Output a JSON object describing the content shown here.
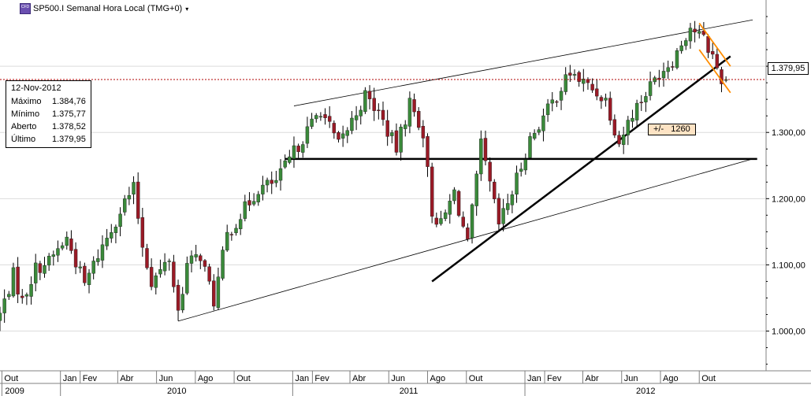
{
  "header": {
    "icon_label": "CFD",
    "title": "SP500.I Semanal Hora Local (TMG+0)",
    "dropdown_glyph": "▾"
  },
  "info_box": {
    "date": "12-Nov-2012",
    "rows": [
      {
        "label": "Máximo",
        "value": "1.384,76"
      },
      {
        "label": "Mínimo",
        "value": "1.375,77"
      },
      {
        "label": "Aberto",
        "value": "1.378,52"
      },
      {
        "label": "Último",
        "value": "1.379,95"
      }
    ]
  },
  "current_price_label": "1.379,95",
  "annotation": "+/-   1260",
  "colors": {
    "bull": "#3a8a3a",
    "bear": "#9a1a26",
    "trend": "#000000",
    "channel": "#ff8c00",
    "price_line": "#b00000",
    "grid": "#dcdcdc"
  },
  "chart_data": {
    "type": "candlestick",
    "symbol": "SP500.I",
    "timeframe": "Semanal",
    "y_ticks": [
      1000,
      1100,
      1200,
      1300,
      1400
    ],
    "y_tick_labels": [
      "1.000,00",
      "1.100,00",
      "1.200,00",
      "1.300,00",
      "1.400,00"
    ],
    "ylim": [
      940,
      1500
    ],
    "x_start": "2009-09-28",
    "x_end": "2013-01-14",
    "month_ticks": [
      {
        "date": "2009-10-01",
        "label": "Out"
      },
      {
        "date": "2010-01-01",
        "label": "Jan"
      },
      {
        "date": "2010-02-01",
        "label": "Fev"
      },
      {
        "date": "2010-04-01",
        "label": "Abr"
      },
      {
        "date": "2010-06-01",
        "label": "Jun"
      },
      {
        "date": "2010-08-01",
        "label": "Ago"
      },
      {
        "date": "2010-10-01",
        "label": "Out"
      },
      {
        "date": "2011-01-01",
        "label": "Jan"
      },
      {
        "date": "2011-02-01",
        "label": "Fev"
      },
      {
        "date": "2011-04-01",
        "label": "Abr"
      },
      {
        "date": "2011-06-01",
        "label": "Jun"
      },
      {
        "date": "2011-08-01",
        "label": "Ago"
      },
      {
        "date": "2011-10-01",
        "label": "Out"
      },
      {
        "date": "2012-01-01",
        "label": "Jan"
      },
      {
        "date": "2012-02-01",
        "label": "Fev"
      },
      {
        "date": "2012-04-01",
        "label": "Abr"
      },
      {
        "date": "2012-06-01",
        "label": "Jun"
      },
      {
        "date": "2012-08-01",
        "label": "Ago"
      },
      {
        "date": "2012-10-01",
        "label": "Out"
      }
    ],
    "year_ticks": [
      {
        "date": "2009-10-01",
        "label": "2009"
      },
      {
        "date": "2010-01-01",
        "label": "2010"
      },
      {
        "date": "2011-01-01",
        "label": "2011"
      },
      {
        "date": "2012-01-01",
        "label": "2012"
      }
    ],
    "close_anchors": [
      [
        "2009-09-28",
        1025
      ],
      [
        "2009-10-19",
        1085
      ],
      [
        "2009-11-02",
        1045
      ],
      [
        "2009-11-23",
        1095
      ],
      [
        "2009-12-14",
        1105
      ],
      [
        "2010-01-11",
        1140
      ],
      [
        "2010-02-08",
        1070
      ],
      [
        "2010-03-01",
        1115
      ],
      [
        "2010-04-12",
        1195
      ],
      [
        "2010-04-26",
        1215
      ],
      [
        "2010-05-10",
        1130
      ],
      [
        "2010-05-24",
        1075
      ],
      [
        "2010-06-07",
        1090
      ],
      [
        "2010-06-21",
        1110
      ],
      [
        "2010-07-05",
        1030
      ],
      [
        "2010-07-19",
        1100
      ],
      [
        "2010-08-09",
        1115
      ],
      [
        "2010-08-30",
        1045
      ],
      [
        "2010-09-20",
        1145
      ],
      [
        "2010-10-18",
        1185
      ],
      [
        "2010-11-08",
        1215
      ],
      [
        "2010-12-06",
        1225
      ],
      [
        "2011-01-03",
        1270
      ],
      [
        "2011-02-14",
        1335
      ],
      [
        "2011-03-14",
        1280
      ],
      [
        "2011-04-25",
        1355
      ],
      [
        "2011-05-16",
        1330
      ],
      [
        "2011-06-13",
        1275
      ],
      [
        "2011-07-04",
        1345
      ],
      [
        "2011-07-25",
        1300
      ],
      [
        "2011-08-08",
        1180
      ],
      [
        "2011-08-22",
        1160
      ],
      [
        "2011-09-12",
        1210
      ],
      [
        "2011-10-03",
        1130
      ],
      [
        "2011-10-24",
        1280
      ],
      [
        "2011-11-21",
        1160
      ],
      [
        "2011-12-12",
        1210
      ],
      [
        "2012-01-09",
        1290
      ],
      [
        "2012-02-13",
        1345
      ],
      [
        "2012-03-12",
        1390
      ],
      [
        "2012-04-09",
        1370
      ],
      [
        "2012-05-07",
        1350
      ],
      [
        "2012-05-28",
        1285
      ],
      [
        "2012-06-18",
        1330
      ],
      [
        "2012-07-09",
        1360
      ],
      [
        "2012-07-30",
        1390
      ],
      [
        "2012-08-20",
        1410
      ],
      [
        "2012-09-17",
        1460
      ],
      [
        "2012-10-08",
        1440
      ],
      [
        "2012-10-22",
        1415
      ],
      [
        "2012-11-05",
        1380
      ],
      [
        "2012-11-12",
        1380
      ]
    ],
    "last_bar": {
      "date": "2012-11-12",
      "open": 1378.52,
      "high": 1384.76,
      "low": 1375.77,
      "close": 1379.95
    },
    "horizontal_levels": [
      {
        "value": 1260,
        "from": "2010-12-20",
        "to": "2012-12-31",
        "label": "+/-   1260"
      }
    ],
    "trendlines": [
      {
        "kind": "channel-upper",
        "from": [
          "2011-01-03",
          1340
        ],
        "to": [
          "2012-12-24",
          1470
        ]
      },
      {
        "kind": "channel-lower",
        "from": [
          "2010-07-05",
          1015
        ],
        "to": [
          "2012-12-24",
          1260
        ]
      },
      {
        "kind": "support",
        "from": [
          "2011-08-08",
          1075
        ],
        "to": [
          "2012-11-19",
          1415
        ]
      }
    ],
    "short_channel": [
      {
        "from": [
          "2012-10-01",
          1465
        ],
        "to": [
          "2012-11-19",
          1400
        ]
      },
      {
        "from": [
          "2012-10-01",
          1425
        ],
        "to": [
          "2012-11-19",
          1360
        ]
      }
    ]
  }
}
